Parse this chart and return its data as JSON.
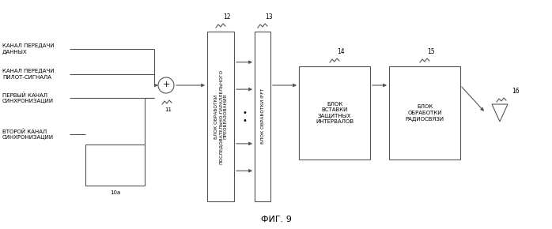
{
  "title": "ФИГ. 9",
  "background": "#ffffff",
  "labels": {
    "channel1": "КАНАЛ ПЕРЕДАЧИ\nДАННЫХ",
    "channel2": "КАНАЛ ПЕРЕДАЧИ\nПИЛОТ-СИГНАЛА",
    "channel3": "ПЕРВЫЙ КАНАЛ\nСИНХРОНИЗАЦИИ",
    "channel4": "ВТОРОЙ КАНАЛ\nСИНХРОНИЗАЦИИ",
    "block10a": "10a",
    "block11": "11",
    "block12": "БЛОК ОБРАБОТКИ\nПОСЛЕДОВАТЕЛЬНО-ПАРАЛЛЕЛЬНОГО\nПРЕОБРАЗОВАНИЯ",
    "block12_num": "12",
    "block13": "БЛОК ОБРАБОТКИ IFFT",
    "block13_num": "13",
    "block14": "БЛОК\nВСТАВКИ\nЗАЩИТНЫХ\nИНТЕРВАЛОВ",
    "block14_num": "14",
    "block15": "БЛОК\nОБРАБОТКИ\nРАДИОСВЯЗИ",
    "block15_num": "15",
    "block16_num": "16"
  },
  "line_color": "#555555",
  "font_size": 5.0
}
